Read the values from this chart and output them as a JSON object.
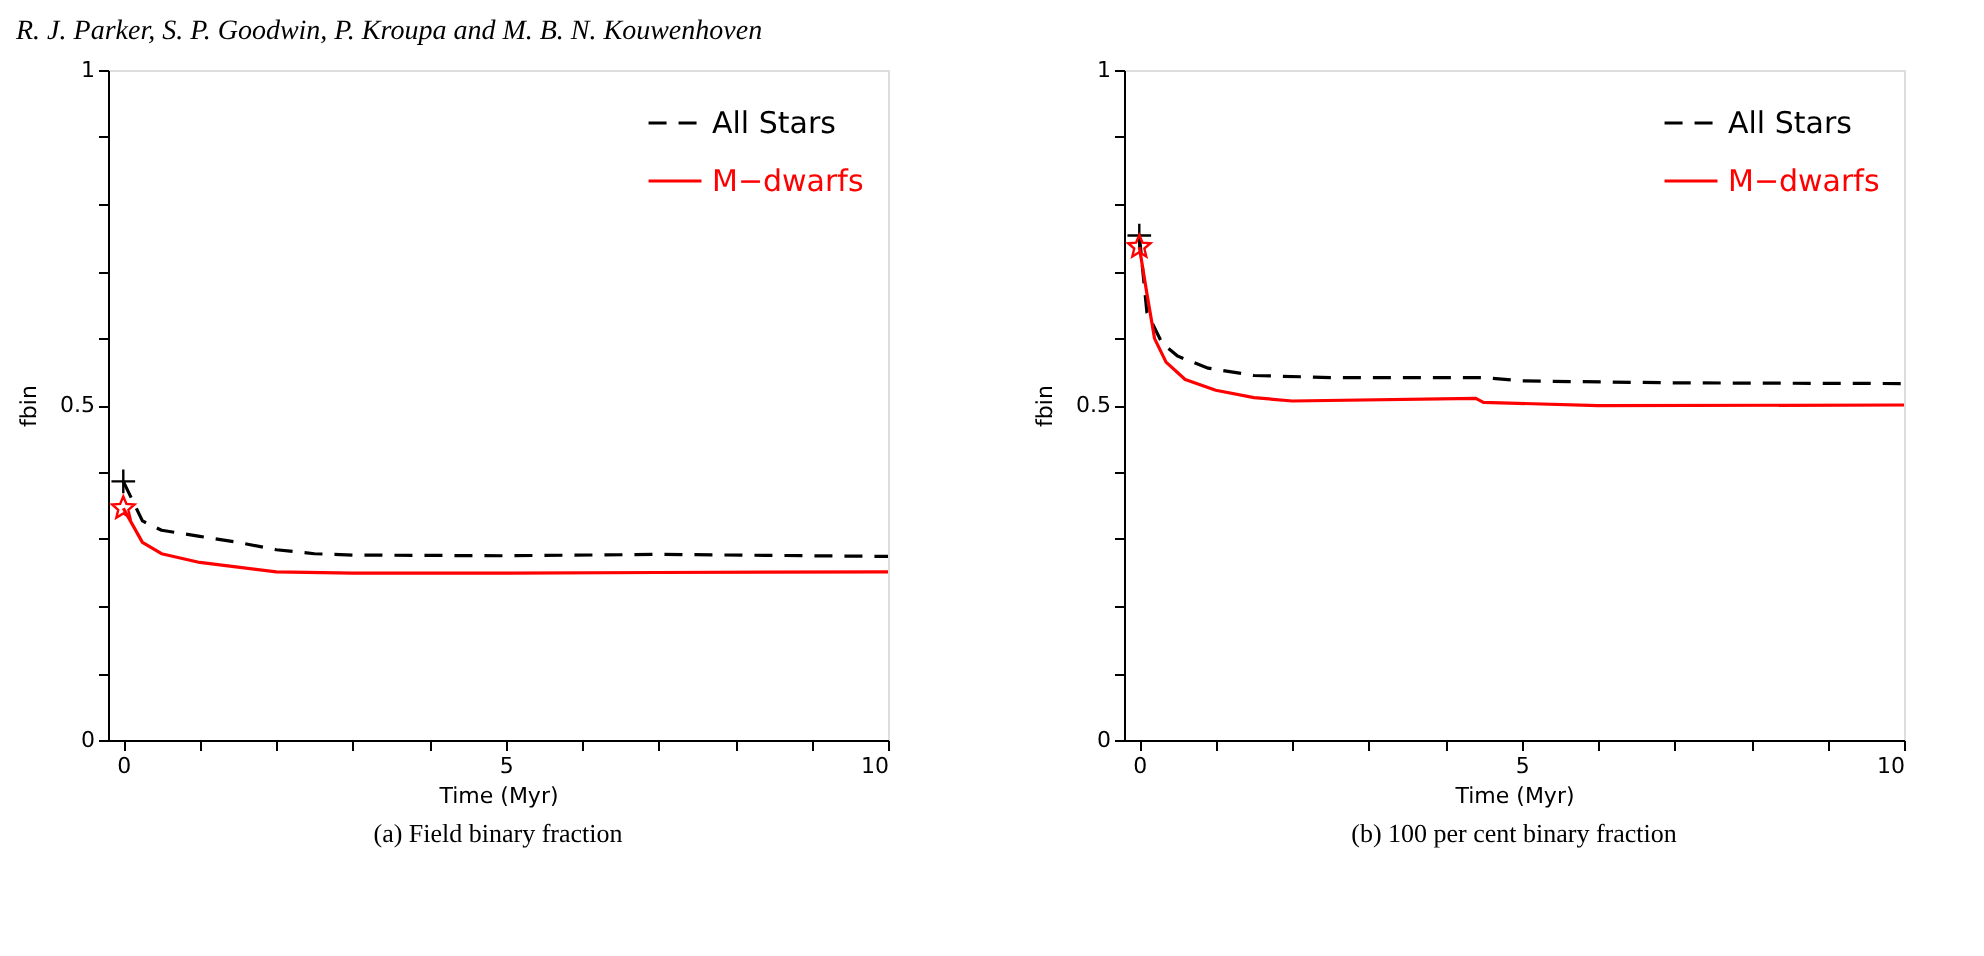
{
  "chart_data": [
    {
      "type": "line",
      "title": "(a) Field binary fraction",
      "annotations": [
        "R. J. Parker, S. P. Goodwin, P. Kroupa and M. B. N. Kouwenhoven"
      ],
      "xlabel": "Time (Myr)",
      "ylabel": "fbin",
      "xlim": [
        -0.2,
        10
      ],
      "ylim": [
        0,
        1
      ],
      "xticks": [
        0,
        {
          "value": 1,
          "label": null
        },
        {
          "value": 2,
          "label": null
        },
        {
          "value": 3,
          "label": null
        },
        {
          "value": 4,
          "label": null
        },
        5,
        {
          "value": 6,
          "label": null
        },
        {
          "value": 7,
          "label": null
        },
        {
          "value": 8,
          "label": null
        },
        {
          "value": 9,
          "label": null
        },
        10
      ],
      "yticks": [
        0,
        {
          "value": 0.1,
          "label": null
        },
        {
          "value": 0.2,
          "label": null
        },
        {
          "value": 0.3,
          "label": null
        },
        {
          "value": 0.4,
          "label": null
        },
        0.5,
        {
          "value": 0.6,
          "label": null
        },
        {
          "value": 0.7,
          "label": null
        },
        {
          "value": 0.8,
          "label": null
        },
        {
          "value": 0.9,
          "label": null
        },
        1
      ],
      "grid": false,
      "legend": "top right",
      "series": [
        {
          "name": "All Stars",
          "color": "#000000",
          "type": "line",
          "line_style": "dashed",
          "x": [
            0,
            0.25,
            0.5,
            1,
            1.5,
            2,
            2.5,
            3,
            5,
            7,
            10
          ],
          "values": [
            0.386,
            0.327,
            0.313,
            0.304,
            0.295,
            0.284,
            0.278,
            0.276,
            0.275,
            0.277,
            0.274
          ]
        },
        {
          "name": "M−dwarfs",
          "color": "#ff0000",
          "type": "line",
          "line_style": "solid",
          "x": [
            0,
            0.25,
            0.5,
            1,
            1.5,
            2,
            3,
            5,
            7,
            10
          ],
          "values": [
            0.346,
            0.295,
            0.278,
            0.265,
            0.258,
            0.251,
            0.249,
            0.249,
            0.25,
            0.251
          ]
        },
        {
          "color": "#000000",
          "type": "scatter",
          "marker": "cross",
          "x": [
            0
          ],
          "values": [
            0.386
          ]
        },
        {
          "color": "#ff0000",
          "type": "scatter",
          "marker": "star",
          "x": [
            0
          ],
          "values": [
            0.346
          ]
        }
      ]
    },
    {
      "type": "line",
      "title": "(b) 100 per cent binary fraction",
      "xlabel": "Time (Myr)",
      "ylabel": "fbin",
      "xlim": [
        -0.2,
        10
      ],
      "ylim": [
        0,
        1
      ],
      "xticks": [
        0,
        {
          "value": 1,
          "label": null
        },
        {
          "value": 2,
          "label": null
        },
        {
          "value": 3,
          "label": null
        },
        {
          "value": 4,
          "label": null
        },
        5,
        {
          "value": 6,
          "label": null
        },
        {
          "value": 7,
          "label": null
        },
        {
          "value": 8,
          "label": null
        },
        {
          "value": 9,
          "label": null
        },
        10
      ],
      "yticks": [
        0,
        {
          "value": 0.1,
          "label": null
        },
        {
          "value": 0.2,
          "label": null
        },
        {
          "value": 0.3,
          "label": null
        },
        {
          "value": 0.4,
          "label": null
        },
        0.5,
        {
          "value": 0.6,
          "label": null
        },
        {
          "value": 0.7,
          "label": null
        },
        {
          "value": 0.8,
          "label": null
        },
        {
          "value": 0.9,
          "label": null
        },
        1
      ],
      "grid": false,
      "legend": "top right",
      "series": [
        {
          "name": "All Stars",
          "color": "#000000",
          "type": "line",
          "line_style": "dashed",
          "x": [
            0,
            0.1,
            0.3,
            0.5,
            0.9,
            1.5,
            2.5,
            4.5,
            5,
            7,
            10
          ],
          "values": [
            0.753,
            0.638,
            0.592,
            0.573,
            0.555,
            0.544,
            0.541,
            0.541,
            0.536,
            0.533,
            0.532
          ]
        },
        {
          "name": "M−dwarfs",
          "color": "#ff0000",
          "type": "line",
          "line_style": "solid",
          "x": [
            0,
            0.1,
            0.2,
            0.35,
            0.6,
            1,
            1.5,
            2,
            4.4,
            4.5,
            6,
            10
          ],
          "values": [
            0.736,
            0.666,
            0.599,
            0.564,
            0.538,
            0.522,
            0.511,
            0.506,
            0.51,
            0.504,
            0.499,
            0.5
          ]
        },
        {
          "color": "#000000",
          "type": "scatter",
          "marker": "cross",
          "x": [
            0
          ],
          "values": [
            0.753
          ]
        },
        {
          "color": "#ff0000",
          "type": "scatter",
          "marker": "star",
          "x": [
            0
          ],
          "values": [
            0.736
          ]
        }
      ]
    }
  ]
}
